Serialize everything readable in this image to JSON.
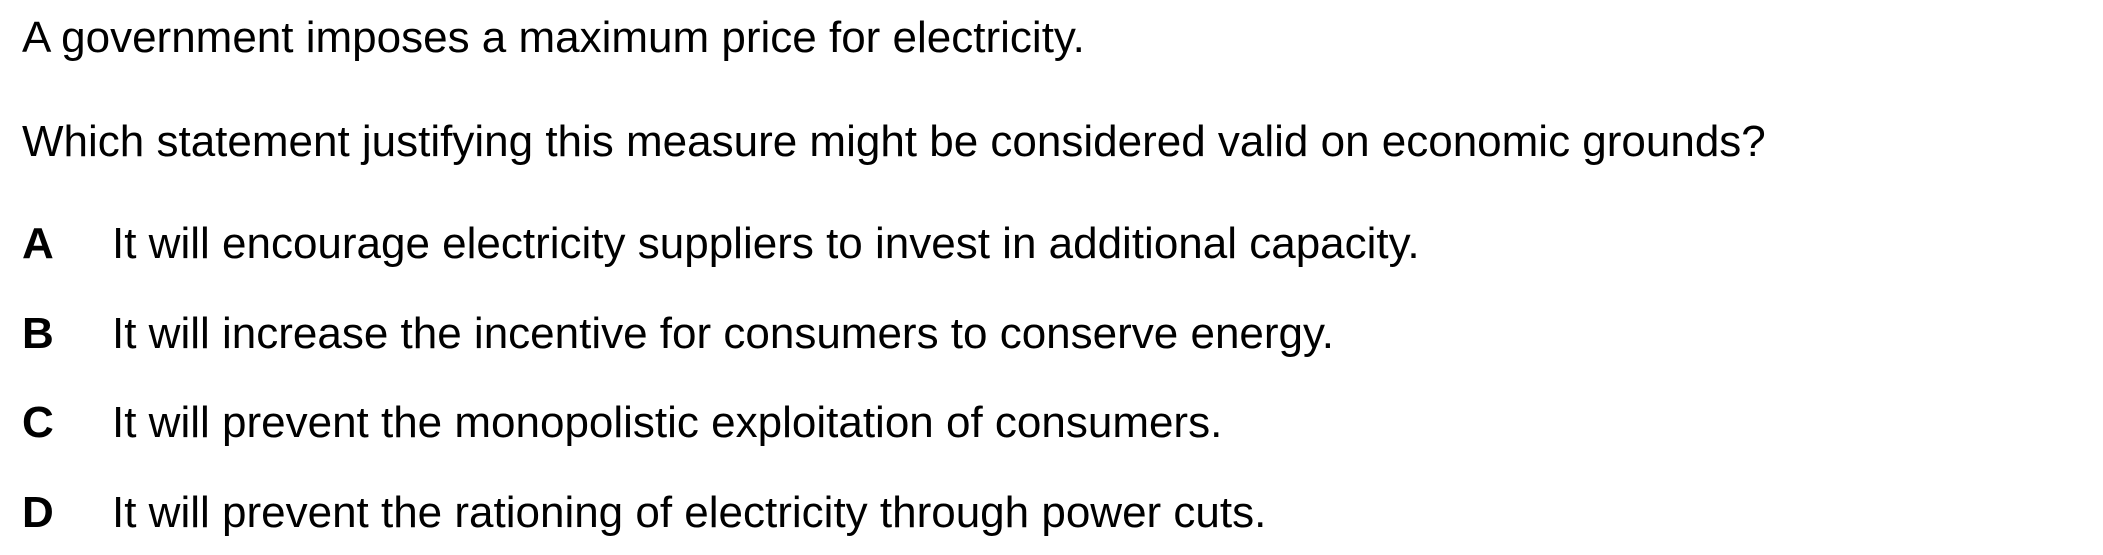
{
  "question": {
    "stem_line_1": "A government imposes a maximum price for electricity.",
    "stem_line_2": "Which statement justifying this measure might be considered valid on economic grounds?",
    "options": [
      {
        "letter": "A",
        "text": "It will encourage electricity suppliers to invest in additional capacity."
      },
      {
        "letter": "B",
        "text": "It will increase the incentive for consumers to conserve energy."
      },
      {
        "letter": "C",
        "text": "It will prevent the monopolistic exploitation of consumers."
      },
      {
        "letter": "D",
        "text": "It will prevent the rationing of electricity through power cuts."
      }
    ]
  }
}
